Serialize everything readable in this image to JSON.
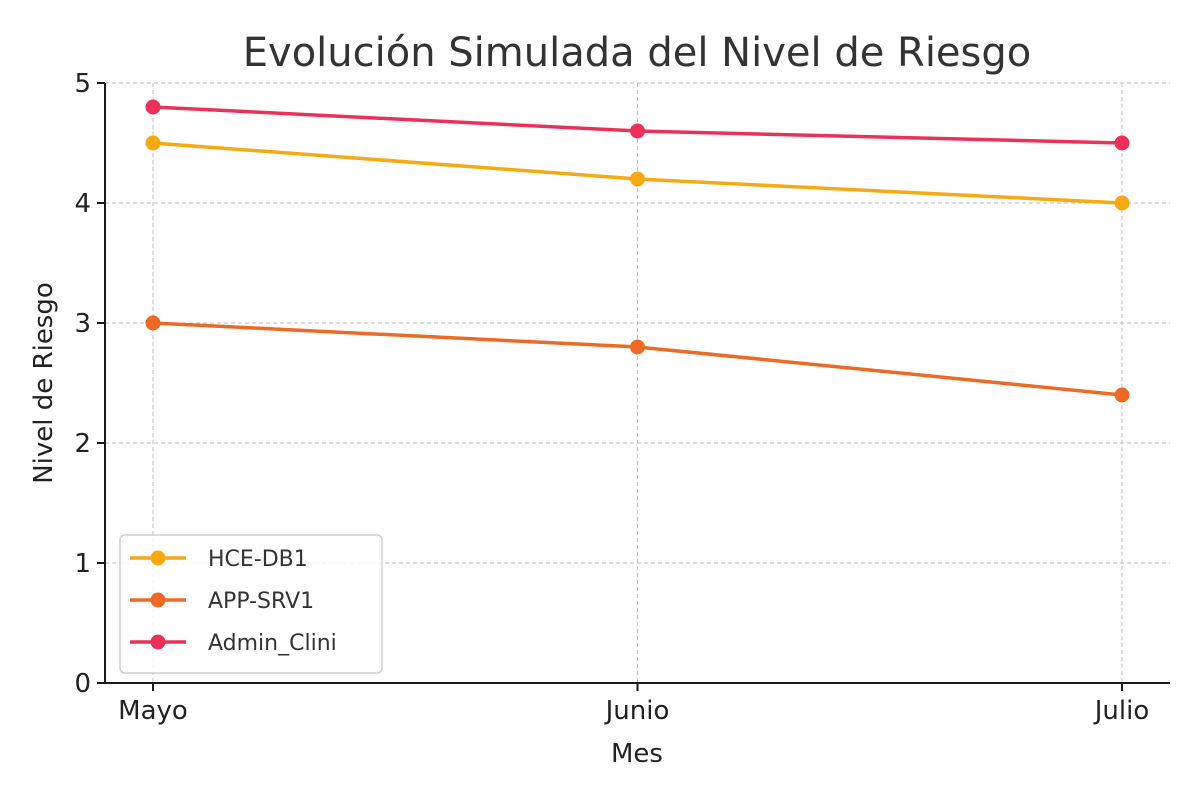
{
  "chart_data": {
    "type": "line",
    "title": "Evolución Simulada del Nivel de Riesgo",
    "xlabel": "Mes",
    "ylabel": "Nivel de Riesgo",
    "categories": [
      "Mayo",
      "Junio",
      "Julio"
    ],
    "ylim": [
      0,
      5
    ],
    "yticks": [
      0,
      1,
      2,
      3,
      4,
      5
    ],
    "grid": true,
    "legend_position": "bottom-left",
    "series": [
      {
        "name": "HCE-DB1",
        "color": "#F7A912",
        "values": [
          4.5,
          4.2,
          4.0
        ]
      },
      {
        "name": "APP-SRV1",
        "color": "#EE6A24",
        "values": [
          3.0,
          2.8,
          2.4
        ]
      },
      {
        "name": "Admin_Clini",
        "color": "#EC3158",
        "values": [
          4.8,
          4.6,
          4.5
        ]
      }
    ]
  }
}
